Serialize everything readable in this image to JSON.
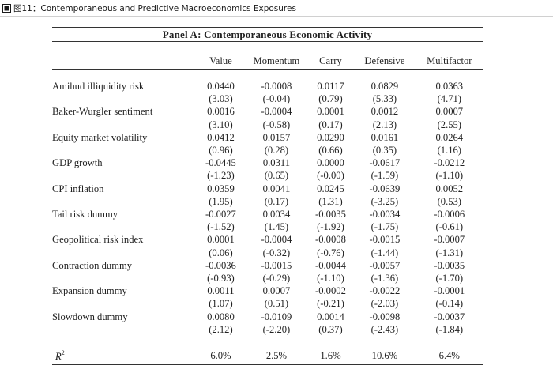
{
  "figure": {
    "title": "图11：Contemporaneous and Predictive Macroeconomics Exposures"
  },
  "panel": {
    "title": "Panel A: Contemporaneous Economic Activity"
  },
  "table": {
    "columns": [
      "Value",
      "Momentum",
      "Carry",
      "Defensive",
      "Multifactor"
    ],
    "rows": [
      {
        "label": "Amihud illiquidity risk",
        "coef": [
          "0.0440",
          "-0.0008",
          "0.0117",
          "0.0829",
          "0.0363"
        ],
        "tstat": [
          "(3.03)",
          "(-0.04)",
          "(0.79)",
          "(5.33)",
          "(4.71)"
        ]
      },
      {
        "label": "Baker-Wurgler sentiment",
        "coef": [
          "0.0016",
          "-0.0004",
          "0.0001",
          "0.0012",
          "0.0007"
        ],
        "tstat": [
          "(3.10)",
          "(-0.58)",
          "(0.17)",
          "(2.13)",
          "(2.55)"
        ]
      },
      {
        "label": "Equity market volatility",
        "coef": [
          "0.0412",
          "0.0157",
          "0.0290",
          "0.0161",
          "0.0264"
        ],
        "tstat": [
          "(0.96)",
          "(0.28)",
          "(0.66)",
          "(0.35)",
          "(1.16)"
        ]
      },
      {
        "label": "GDP growth",
        "coef": [
          "-0.0445",
          "0.0311",
          "0.0000",
          "-0.0617",
          "-0.0212"
        ],
        "tstat": [
          "(-1.23)",
          "(0.65)",
          "(-0.00)",
          "(-1.59)",
          "(-1.10)"
        ]
      },
      {
        "label": "CPI inflation",
        "coef": [
          "0.0359",
          "0.0041",
          "0.0245",
          "-0.0639",
          "0.0052"
        ],
        "tstat": [
          "(1.95)",
          "(0.17)",
          "(1.31)",
          "(-3.25)",
          "(0.53)"
        ]
      },
      {
        "label": "Tail risk dummy",
        "coef": [
          "-0.0027",
          "0.0034",
          "-0.0035",
          "-0.0034",
          "-0.0006"
        ],
        "tstat": [
          "(-1.52)",
          "(1.45)",
          "(-1.92)",
          "(-1.75)",
          "(-0.61)"
        ]
      },
      {
        "label": "Geopolitical risk index",
        "coef": [
          "0.0001",
          "-0.0004",
          "-0.0008",
          "-0.0015",
          "-0.0007"
        ],
        "tstat": [
          "(0.06)",
          "(-0.32)",
          "(-0.76)",
          "(-1.44)",
          "(-1.31)"
        ]
      },
      {
        "label": "Contraction dummy",
        "coef": [
          "-0.0036",
          "-0.0015",
          "-0.0044",
          "-0.0057",
          "-0.0035"
        ],
        "tstat": [
          "(-0.93)",
          "(-0.29)",
          "(-1.10)",
          "(-1.36)",
          "(-1.70)"
        ]
      },
      {
        "label": "Expansion dummy",
        "coef": [
          "0.0011",
          "0.0007",
          "-0.0002",
          "-0.0022",
          "-0.0001"
        ],
        "tstat": [
          "(1.07)",
          "(0.51)",
          "(-0.21)",
          "(-2.03)",
          "(-0.14)"
        ]
      },
      {
        "label": "Slowdown dummy",
        "coef": [
          "0.0080",
          "-0.0109",
          "0.0014",
          "-0.0098",
          "-0.0037"
        ],
        "tstat": [
          "(2.12)",
          "(-2.20)",
          "(0.37)",
          "(-2.43)",
          "(-1.84)"
        ]
      }
    ],
    "r2": {
      "label": "R",
      "label_sup": "2",
      "values": [
        "6.0%",
        "2.5%",
        "1.6%",
        "10.6%",
        "6.4%"
      ]
    }
  }
}
